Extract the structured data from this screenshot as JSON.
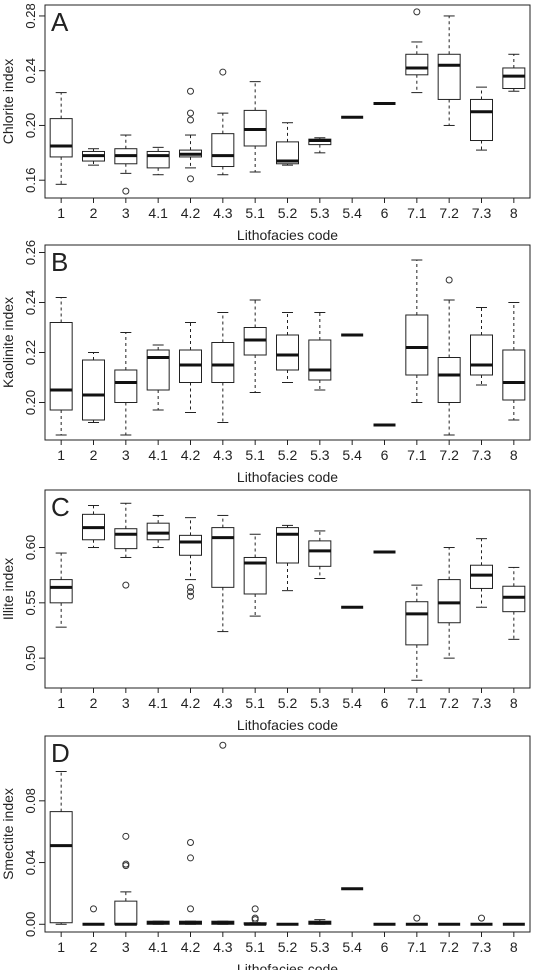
{
  "chart_data": [
    {
      "type": "box",
      "panel": "A",
      "ylabel": "Chlorite index",
      "xlabel": "Lithofacies code",
      "categories": [
        "1",
        "2",
        "3",
        "4.1",
        "4.2",
        "4.3",
        "5.1",
        "5.2",
        "5.3",
        "5.4",
        "6",
        "7.1",
        "7.2",
        "7.3",
        "8"
      ],
      "ylim": [
        0.147,
        0.288
      ],
      "yticks": [
        0.16,
        {
          "value": 0.2,
          "label": "0.20"
        },
        0.24,
        0.28
      ],
      "boxes": [
        {
          "whisker_low": 0.157,
          "q1": 0.177,
          "median": 0.185,
          "q3": 0.205,
          "whisker_high": 0.224,
          "outliers": []
        },
        {
          "whisker_low": 0.171,
          "q1": 0.174,
          "median": 0.178,
          "q3": 0.181,
          "whisker_high": 0.183,
          "outliers": []
        },
        {
          "whisker_low": 0.165,
          "q1": 0.172,
          "median": 0.178,
          "q3": 0.183,
          "whisker_high": 0.193,
          "outliers": [
            0.152
          ]
        },
        {
          "whisker_low": 0.164,
          "q1": 0.169,
          "median": 0.178,
          "q3": 0.181,
          "whisker_high": 0.184,
          "outliers": []
        },
        {
          "whisker_low": 0.169,
          "q1": 0.177,
          "median": 0.179,
          "q3": 0.182,
          "whisker_high": 0.193,
          "outliers": [
            0.204,
            0.209,
            0.225,
            0.161
          ]
        },
        {
          "whisker_low": 0.164,
          "q1": 0.17,
          "median": 0.178,
          "q3": 0.194,
          "whisker_high": 0.209,
          "outliers": [
            0.239
          ]
        },
        {
          "whisker_low": 0.166,
          "q1": 0.185,
          "median": 0.197,
          "q3": 0.211,
          "whisker_high": 0.232,
          "outliers": []
        },
        {
          "whisker_low": 0.171,
          "q1": 0.172,
          "median": 0.174,
          "q3": 0.188,
          "whisker_high": 0.202,
          "outliers": []
        },
        {
          "whisker_low": 0.18,
          "q1": 0.186,
          "median": 0.189,
          "q3": 0.19,
          "whisker_high": 0.191,
          "outliers": []
        },
        {
          "median": 0.206
        },
        {
          "median": 0.216
        },
        {
          "whisker_low": 0.224,
          "q1": 0.237,
          "median": 0.242,
          "q3": 0.252,
          "whisker_high": 0.261,
          "outliers": [
            0.283
          ]
        },
        {
          "whisker_low": 0.2,
          "q1": 0.219,
          "median": 0.244,
          "q3": 0.252,
          "whisker_high": 0.28,
          "outliers": []
        },
        {
          "whisker_low": 0.182,
          "q1": 0.189,
          "median": 0.21,
          "q3": 0.219,
          "whisker_high": 0.228,
          "outliers": []
        },
        {
          "whisker_low": 0.225,
          "q1": 0.227,
          "median": 0.236,
          "q3": 0.242,
          "whisker_high": 0.252,
          "outliers": []
        }
      ]
    },
    {
      "type": "box",
      "panel": "B",
      "ylabel": "Kaolinite index",
      "xlabel": "Lithofacies code",
      "categories": [
        "1",
        "2",
        "3",
        "4.1",
        "4.2",
        "4.3",
        "5.1",
        "5.2",
        "5.3",
        "5.4",
        "6",
        "7.1",
        "7.2",
        "7.3",
        "8"
      ],
      "ylim": [
        0.185,
        0.263
      ],
      "yticks": [
        {
          "value": 0.2,
          "label": "0.20"
        },
        0.22,
        0.24,
        0.26
      ],
      "boxes": [
        {
          "whisker_low": 0.187,
          "q1": 0.197,
          "median": 0.205,
          "q3": 0.232,
          "whisker_high": 0.242,
          "outliers": []
        },
        {
          "whisker_low": 0.192,
          "q1": 0.193,
          "median": 0.203,
          "q3": 0.217,
          "whisker_high": 0.22,
          "outliers": []
        },
        {
          "whisker_low": 0.187,
          "q1": 0.2,
          "median": 0.208,
          "q3": 0.213,
          "whisker_high": 0.228,
          "outliers": []
        },
        {
          "whisker_low": 0.197,
          "q1": 0.205,
          "median": 0.218,
          "q3": 0.221,
          "whisker_high": 0.223,
          "outliers": []
        },
        {
          "whisker_low": 0.196,
          "q1": 0.208,
          "median": 0.215,
          "q3": 0.221,
          "whisker_high": 0.232,
          "outliers": []
        },
        {
          "whisker_low": 0.192,
          "q1": 0.208,
          "median": 0.215,
          "q3": 0.224,
          "whisker_high": 0.236,
          "outliers": []
        },
        {
          "whisker_low": 0.204,
          "q1": 0.219,
          "median": 0.225,
          "q3": 0.23,
          "whisker_high": 0.241,
          "outliers": []
        },
        {
          "whisker_low": 0.208,
          "q1": 0.213,
          "median": 0.219,
          "q3": 0.227,
          "whisker_high": 0.236,
          "outliers": []
        },
        {
          "whisker_low": 0.205,
          "q1": 0.209,
          "median": 0.213,
          "q3": 0.225,
          "whisker_high": 0.236,
          "outliers": []
        },
        {
          "median": 0.227
        },
        {
          "median": 0.191
        },
        {
          "whisker_low": 0.2,
          "q1": 0.211,
          "median": 0.222,
          "q3": 0.235,
          "whisker_high": 0.257,
          "outliers": []
        },
        {
          "whisker_low": 0.187,
          "q1": 0.2,
          "median": 0.211,
          "q3": 0.218,
          "whisker_high": 0.241,
          "outliers": [
            0.249
          ]
        },
        {
          "whisker_low": 0.207,
          "q1": 0.211,
          "median": 0.215,
          "q3": 0.227,
          "whisker_high": 0.238,
          "outliers": []
        },
        {
          "whisker_low": 0.193,
          "q1": 0.201,
          "median": 0.208,
          "q3": 0.221,
          "whisker_high": 0.24,
          "outliers": []
        }
      ]
    },
    {
      "type": "box",
      "panel": "C",
      "ylabel": "Illite index",
      "xlabel": "Lithofacies code",
      "categories": [
        "1",
        "2",
        "3",
        "4.1",
        "4.2",
        "4.3",
        "5.1",
        "5.2",
        "5.3",
        "5.4",
        "6",
        "7.1",
        "7.2",
        "7.3",
        "8"
      ],
      "ylim": [
        0.473,
        0.652
      ],
      "yticks": [
        {
          "value": 0.5,
          "label": "0.50"
        },
        0.55,
        {
          "value": 0.6,
          "label": "0.60"
        }
      ],
      "boxes": [
        {
          "whisker_low": 0.528,
          "q1": 0.55,
          "median": 0.564,
          "q3": 0.571,
          "whisker_high": 0.595,
          "outliers": []
        },
        {
          "whisker_low": 0.6,
          "q1": 0.607,
          "median": 0.618,
          "q3": 0.63,
          "whisker_high": 0.638,
          "outliers": []
        },
        {
          "whisker_low": 0.591,
          "q1": 0.599,
          "median": 0.612,
          "q3": 0.617,
          "whisker_high": 0.64,
          "outliers": [
            0.566
          ]
        },
        {
          "whisker_low": 0.6,
          "q1": 0.607,
          "median": 0.613,
          "q3": 0.622,
          "whisker_high": 0.629,
          "outliers": []
        },
        {
          "whisker_low": 0.571,
          "q1": 0.593,
          "median": 0.605,
          "q3": 0.611,
          "whisker_high": 0.627,
          "outliers": [
            0.564,
            0.56,
            0.556
          ]
        },
        {
          "whisker_low": 0.524,
          "q1": 0.564,
          "median": 0.609,
          "q3": 0.618,
          "whisker_high": 0.629,
          "outliers": []
        },
        {
          "whisker_low": 0.538,
          "q1": 0.558,
          "median": 0.586,
          "q3": 0.591,
          "whisker_high": 0.612,
          "outliers": []
        },
        {
          "whisker_low": 0.561,
          "q1": 0.586,
          "median": 0.612,
          "q3": 0.618,
          "whisker_high": 0.62,
          "outliers": []
        },
        {
          "whisker_low": 0.572,
          "q1": 0.583,
          "median": 0.597,
          "q3": 0.606,
          "whisker_high": 0.615,
          "outliers": []
        },
        {
          "median": 0.546
        },
        {
          "median": 0.596
        },
        {
          "whisker_low": 0.48,
          "q1": 0.512,
          "median": 0.54,
          "q3": 0.551,
          "whisker_high": 0.566,
          "outliers": []
        },
        {
          "whisker_low": 0.5,
          "q1": 0.532,
          "median": 0.55,
          "q3": 0.571,
          "whisker_high": 0.6,
          "outliers": []
        },
        {
          "whisker_low": 0.546,
          "q1": 0.563,
          "median": 0.575,
          "q3": 0.584,
          "whisker_high": 0.608,
          "outliers": []
        },
        {
          "whisker_low": 0.517,
          "q1": 0.542,
          "median": 0.555,
          "q3": 0.565,
          "whisker_high": 0.582,
          "outliers": []
        }
      ]
    },
    {
      "type": "box",
      "panel": "D",
      "ylabel": "Smectite index",
      "xlabel": "Lithofacies code",
      "categories": [
        "1",
        "2",
        "3",
        "4.1",
        "4.2",
        "4.3",
        "5.1",
        "5.2",
        "5.3",
        "5.4",
        "6",
        "7.1",
        "7.2",
        "7.3",
        "8"
      ],
      "ylim": [
        -0.005,
        0.122
      ],
      "yticks": [
        {
          "value": 0,
          "label": "0.00"
        },
        0.04,
        0.08
      ],
      "boxes": [
        {
          "whisker_low": 0,
          "q1": 0.001,
          "median": 0.051,
          "q3": 0.073,
          "whisker_high": 0.099,
          "outliers": []
        },
        {
          "whisker_low": 0,
          "q1": 0,
          "median": 0,
          "q3": 0,
          "whisker_high": 0,
          "outliers": [
            0.01
          ]
        },
        {
          "whisker_low": 0,
          "q1": 0,
          "median": 0,
          "q3": 0.015,
          "whisker_high": 0.021,
          "outliers": [
            0.057,
            0.039,
            0.038
          ]
        },
        {
          "whisker_low": 0,
          "q1": 0,
          "median": 0.001,
          "q3": 0.002,
          "whisker_high": 0.002,
          "outliers": []
        },
        {
          "whisker_low": 0,
          "q1": 0,
          "median": 0.001,
          "q3": 0.002,
          "whisker_high": 0.002,
          "outliers": [
            0.01,
            0.043,
            0.053
          ]
        },
        {
          "whisker_low": 0,
          "q1": 0,
          "median": 0.001,
          "q3": 0.002,
          "whisker_high": 0.002,
          "outliers": [
            0.116
          ]
        },
        {
          "whisker_low": 0,
          "q1": 0,
          "median": 0,
          "q3": 0.001,
          "whisker_high": 0.001,
          "outliers": [
            0.01,
            0.004,
            0.003
          ]
        },
        {
          "whisker_low": 0,
          "q1": 0,
          "median": 0,
          "q3": 0,
          "whisker_high": 0,
          "outliers": []
        },
        {
          "whisker_low": 0,
          "q1": 0,
          "median": 0.001,
          "q3": 0.002,
          "whisker_high": 0.003,
          "outliers": []
        },
        {
          "median": 0.023
        },
        {
          "median": 0
        },
        {
          "whisker_low": 0,
          "q1": 0,
          "median": 0,
          "q3": 0,
          "whisker_high": 0,
          "outliers": [
            0.004
          ]
        },
        {
          "whisker_low": 0,
          "q1": 0,
          "median": 0,
          "q3": 0,
          "whisker_high": 0,
          "outliers": []
        },
        {
          "whisker_low": 0,
          "q1": 0,
          "median": 0,
          "q3": 0,
          "whisker_high": 0,
          "outliers": [
            0.004
          ]
        },
        {
          "whisker_low": 0,
          "q1": 0,
          "median": 0,
          "q3": 0,
          "whisker_high": 0,
          "outliers": []
        }
      ]
    }
  ]
}
